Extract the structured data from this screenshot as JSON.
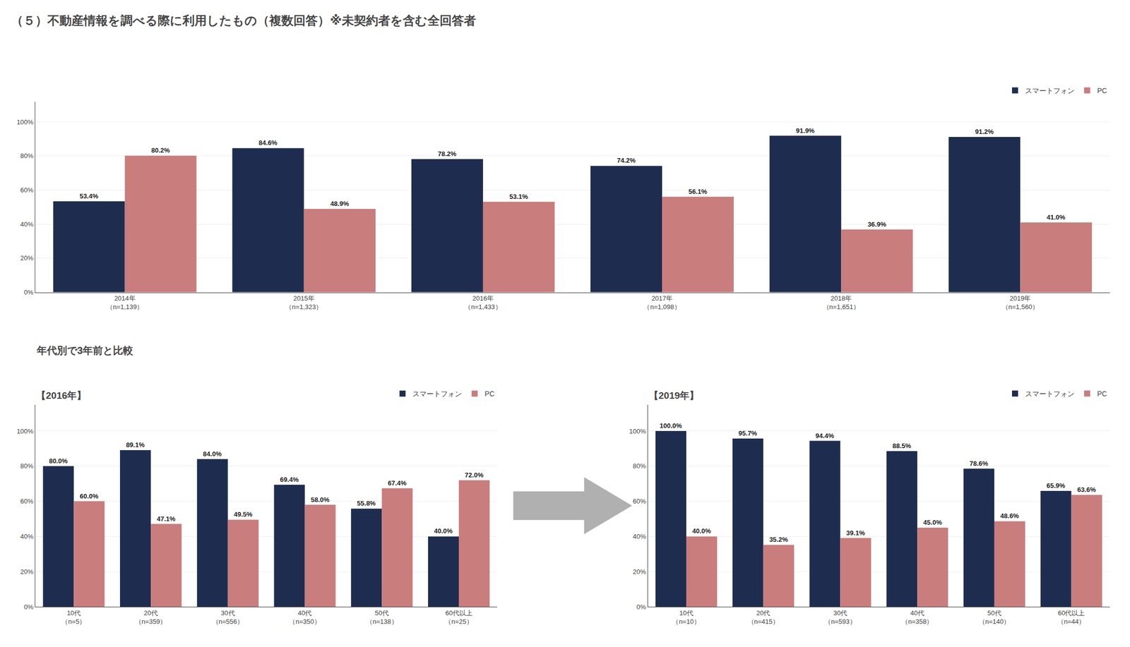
{
  "chart_data": [
    {
      "type": "bar",
      "title": "（５）不動産情報を調べる際に利用したもの（複数回答）※未契約者を含む全回答者",
      "categories": [
        "2014年\n（n=1,139）",
        "2015年\n（n=1,323）",
        "2016年\n（n=1,433）",
        "2017年\n（n=1,098）",
        "2018年\n（n=1,651）",
        "2019年\n（n=1,560）"
      ],
      "series": [
        {
          "name": "スマートフォン",
          "color": "#1e2d4f",
          "values": [
            53.4,
            84.6,
            78.2,
            74.2,
            91.9,
            91.2
          ],
          "value_labels": [
            "53.4%",
            "84.6%",
            "78.2%",
            "74.2%",
            "91.9%",
            "91.2%"
          ]
        },
        {
          "name": "PC",
          "color": "#c97d7d",
          "values": [
            80.2,
            48.9,
            53.1,
            56.1,
            36.9,
            41.0
          ],
          "value_labels": [
            "80.2%",
            "48.9%",
            "53.1%",
            "56.1%",
            "36.9%",
            "41.0%"
          ]
        }
      ],
      "ylim": [
        0,
        112
      ],
      "yticks": [
        {
          "value": 0,
          "label": "0%"
        },
        {
          "value": 20,
          "label": "20%"
        },
        {
          "value": 40,
          "label": "40%"
        },
        {
          "value": 60,
          "label": "60%"
        },
        {
          "value": 80,
          "label": "80%"
        },
        {
          "value": 100,
          "label": "100%"
        }
      ],
      "grid": true,
      "legend": "upper right",
      "data_labels": true
    },
    {
      "type": "bar",
      "title": "【2016年】",
      "subtitle": "年代別で3年前と比較",
      "categories": [
        "10代\n（n=5）",
        "20代\n（n=359）",
        "30代\n（n=556）",
        "40代\n（n=350）",
        "50代\n（n=138）",
        "60代以上\n（n=25）"
      ],
      "series": [
        {
          "name": "スマートフォン",
          "color": "#1e2d4f",
          "values": [
            80.0,
            89.1,
            84.0,
            69.4,
            55.8,
            40.0
          ],
          "value_labels": [
            "80.0%",
            "89.1%",
            "84.0%",
            "69.4%",
            "55.8%",
            "40.0%"
          ]
        },
        {
          "name": "PC",
          "color": "#c97d7d",
          "values": [
            60.0,
            47.1,
            49.5,
            58.0,
            67.4,
            72.0
          ],
          "value_labels": [
            "60.0%",
            "47.1%",
            "49.5%",
            "58.0%",
            "67.4%",
            "72.0%"
          ]
        }
      ],
      "ylim": [
        0,
        115
      ],
      "yticks": [
        {
          "value": 0,
          "label": "0%"
        },
        {
          "value": 20,
          "label": "20%"
        },
        {
          "value": 40,
          "label": "40%"
        },
        {
          "value": 60,
          "label": "60%"
        },
        {
          "value": 80,
          "label": "80%"
        },
        {
          "value": 100,
          "label": "100%"
        }
      ],
      "grid": true,
      "legend": "upper right",
      "data_labels": true
    },
    {
      "type": "bar",
      "title": "【2019年】",
      "categories": [
        "10代\n（n=10）",
        "20代\n（n=415）",
        "30代\n（n=593）",
        "40代\n（n=358）",
        "50代\n（n=140）",
        "60代以上\n（n=44）"
      ],
      "series": [
        {
          "name": "スマートフォン",
          "color": "#1e2d4f",
          "values": [
            100.0,
            95.7,
            94.4,
            88.5,
            78.6,
            65.9
          ],
          "value_labels": [
            "100.0%",
            "95.7%",
            "94.4%",
            "88.5%",
            "78.6%",
            "65.9%"
          ]
        },
        {
          "name": "PC",
          "color": "#c97d7d",
          "values": [
            40.0,
            35.2,
            39.1,
            45.0,
            48.6,
            63.6
          ],
          "value_labels": [
            "40.0%",
            "35.2%",
            "39.1%",
            "45.0%",
            "48.6%",
            "63.6%"
          ]
        }
      ],
      "ylim": [
        0,
        115
      ],
      "yticks": [
        {
          "value": 0,
          "label": "0%"
        },
        {
          "value": 20,
          "label": "20%"
        },
        {
          "value": 40,
          "label": "40%"
        },
        {
          "value": 60,
          "label": "60%"
        },
        {
          "value": 80,
          "label": "80%"
        },
        {
          "value": 100,
          "label": "100%"
        }
      ],
      "grid": true,
      "legend": "upper right",
      "data_labels": true
    }
  ]
}
